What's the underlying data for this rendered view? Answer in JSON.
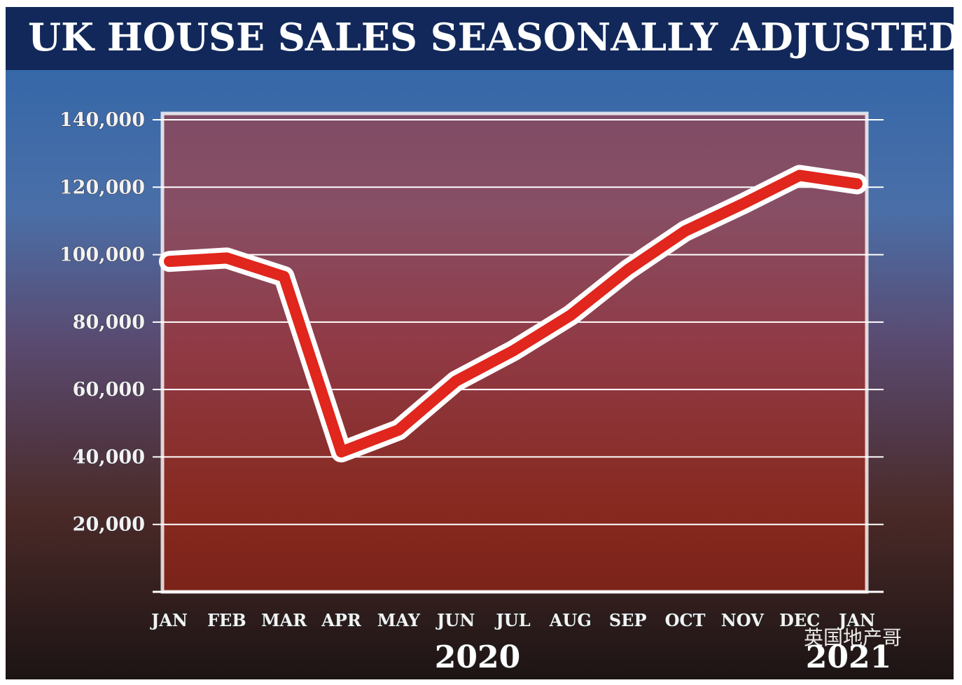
{
  "chart_data": {
    "type": "line",
    "title": "UK HOUSE SALES SEASONALLY ADJUSTED",
    "categories": [
      "JAN",
      "FEB",
      "MAR",
      "APR",
      "MAY",
      "JUN",
      "JUL",
      "AUG",
      "SEP",
      "OCT",
      "NOV",
      "DEC",
      "JAN"
    ],
    "series": [
      {
        "name": "UK house sales",
        "color": "#e0261d",
        "values": [
          98000,
          99000,
          93500,
          41500,
          48000,
          62500,
          71500,
          82000,
          95500,
          107000,
          115000,
          123500,
          121000
        ]
      }
    ],
    "annotations": [
      "2020",
      "2021"
    ],
    "watermark": "英国地产哥",
    "ylim": [
      0,
      140000
    ],
    "yticks": [
      {
        "value": 20000,
        "label": "20,000"
      },
      {
        "value": 40000,
        "label": "40,000"
      },
      {
        "value": 60000,
        "label": "60,000"
      },
      {
        "value": 80000,
        "label": "80,000"
      },
      {
        "value": 100000,
        "label": "100,000"
      },
      {
        "value": 120000,
        "label": "120,000"
      },
      {
        "value": 140000,
        "label": "140,000"
      }
    ],
    "grid": true
  }
}
